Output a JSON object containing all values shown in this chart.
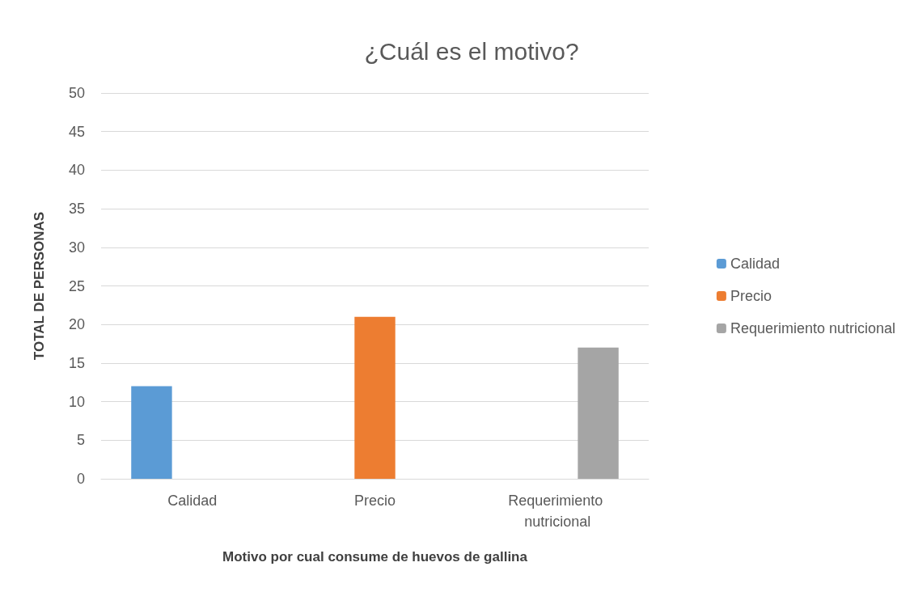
{
  "chart_data": {
    "type": "bar",
    "title": "¿Cuál es el motivo?",
    "xlabel": "Motivo por cual consume de huevos de gallina",
    "ylabel": "TOTAL DE PERSONAS",
    "categories": [
      "Calidad",
      "Precio",
      "Requerimiento nutricional"
    ],
    "series": [
      {
        "name": "Calidad",
        "color": "#5b9bd5",
        "values": [
          12,
          null,
          null
        ]
      },
      {
        "name": "Precio",
        "color": "#ed7d31",
        "values": [
          null,
          21,
          null
        ]
      },
      {
        "name": "Requerimiento nutricional",
        "color": "#a5a5a5",
        "values": [
          null,
          null,
          17
        ]
      }
    ],
    "ylim": [
      0,
      50
    ],
    "yticks": [
      0,
      5,
      10,
      15,
      20,
      25,
      30,
      35,
      40,
      45,
      50
    ],
    "grid": "y",
    "legend": "right"
  }
}
